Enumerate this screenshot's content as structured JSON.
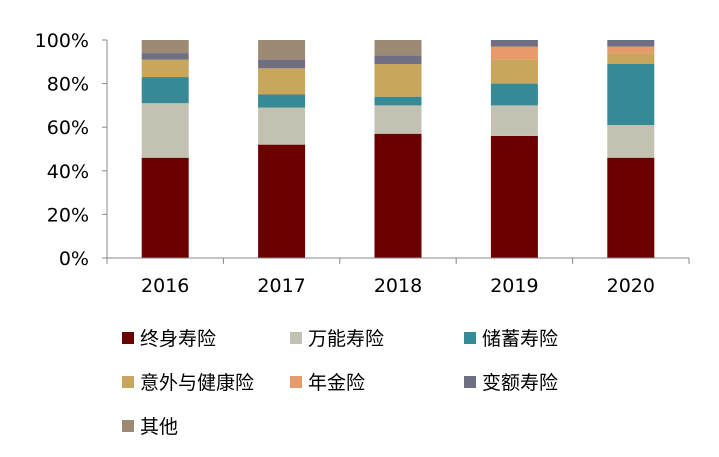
{
  "chart_data": {
    "type": "bar",
    "stacked": true,
    "normalized": true,
    "categories": [
      "2016",
      "2017",
      "2018",
      "2019",
      "2020"
    ],
    "ylim": [
      0,
      100
    ],
    "yticks": [
      "0%",
      "20%",
      "40%",
      "60%",
      "80%",
      "100%"
    ],
    "grid": false,
    "legend_position": "bottom",
    "series": [
      {
        "name": "终身寿险",
        "color": "#6b0000",
        "values": [
          46,
          52,
          57,
          56,
          46
        ]
      },
      {
        "name": "万能寿险",
        "color": "#c3c2b2",
        "values": [
          25,
          17,
          13,
          14,
          15
        ]
      },
      {
        "name": "储蓄寿险",
        "color": "#368a96",
        "values": [
          12,
          6,
          4,
          10,
          28
        ]
      },
      {
        "name": "意外与健康险",
        "color": "#c8a65c",
        "values": [
          8,
          12,
          15,
          11,
          5
        ]
      },
      {
        "name": "年金险",
        "color": "#e89a6a",
        "values": [
          0,
          0,
          0,
          6,
          3
        ]
      },
      {
        "name": "变额寿险",
        "color": "#6f6f84",
        "values": [
          3,
          4,
          4,
          3,
          3
        ]
      },
      {
        "name": "其他",
        "color": "#9d8a75",
        "values": [
          6,
          9,
          7,
          0,
          0
        ]
      }
    ]
  }
}
